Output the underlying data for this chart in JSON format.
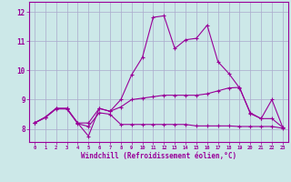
{
  "xlabel": "Windchill (Refroidissement éolien,°C)",
  "background_color": "#cce8e8",
  "grid_color": "#aaaacc",
  "line_color": "#990099",
  "xlim": [
    -0.5,
    23.5
  ],
  "ylim": [
    7.55,
    12.35
  ],
  "yticks": [
    8,
    9,
    10,
    11,
    12
  ],
  "xticks": [
    0,
    1,
    2,
    3,
    4,
    5,
    6,
    7,
    8,
    9,
    10,
    11,
    12,
    13,
    14,
    15,
    16,
    17,
    18,
    19,
    20,
    21,
    22,
    23
  ],
  "series": {
    "line1_y": [
      8.2,
      8.4,
      8.7,
      8.7,
      8.2,
      7.75,
      8.7,
      8.6,
      9.0,
      9.85,
      10.45,
      11.82,
      11.87,
      10.75,
      11.05,
      11.1,
      11.55,
      10.3,
      9.9,
      9.4,
      8.55,
      8.35,
      9.0,
      8.05
    ],
    "line2_y": [
      8.2,
      8.4,
      8.7,
      8.7,
      8.2,
      8.2,
      8.7,
      8.6,
      8.75,
      9.0,
      9.05,
      9.1,
      9.15,
      9.15,
      9.15,
      9.15,
      9.2,
      9.3,
      9.4,
      9.42,
      8.52,
      8.35,
      8.35,
      8.05
    ],
    "line3_y": [
      8.2,
      8.38,
      8.68,
      8.68,
      8.18,
      8.08,
      8.55,
      8.5,
      8.15,
      8.15,
      8.15,
      8.15,
      8.15,
      8.15,
      8.15,
      8.1,
      8.1,
      8.1,
      8.1,
      8.08,
      8.08,
      8.08,
      8.08,
      8.02
    ]
  }
}
